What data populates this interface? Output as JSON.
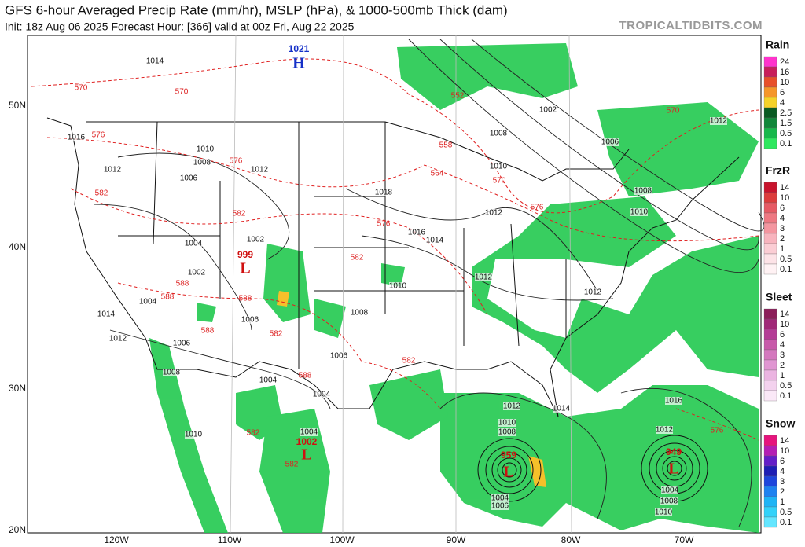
{
  "header": {
    "title": "GFS 6-hour Averaged Precip Rate (mm/hr), MSLP (hPa), & 1000-500mb Thick (dam)",
    "subtitle": "Init: 18z Aug 06 2025   Forecast Hour: [366]   valid at 00z Fri, Aug 22 2025",
    "site": "TROPICALTIDBITS.COM"
  },
  "lat_labels": [
    "50N",
    "40N",
    "30N",
    "20N"
  ],
  "lon_labels": [
    "120W",
    "110W",
    "100W",
    "90W",
    "80W",
    "70W"
  ],
  "legends": [
    {
      "title": "Rain",
      "labels": [
        24,
        16,
        10,
        6,
        4,
        2.5,
        1.5,
        0.5,
        0.1
      ],
      "colors": [
        "#ff33cc",
        "#c81e5a",
        "#e8502a",
        "#f5962a",
        "#f5d22a",
        "#0a5a23",
        "#11873a",
        "#17b84b",
        "#2ee85f"
      ]
    },
    {
      "title": "FrzR",
      "labels": [
        14,
        10,
        6,
        4,
        3,
        2,
        1,
        0.5,
        0.1
      ],
      "colors": [
        "#c8142d",
        "#dc3c3c",
        "#e65a64",
        "#ee7882",
        "#f496a0",
        "#f8b4be",
        "#fbcdd4",
        "#fde3e7",
        "#fff2f4"
      ]
    },
    {
      "title": "Sleet",
      "labels": [
        14,
        10,
        6,
        4,
        3,
        2,
        1,
        0.5,
        0.1
      ],
      "colors": [
        "#8c1e5a",
        "#a02878",
        "#b43c96",
        "#c85aaa",
        "#d478be",
        "#e096d2",
        "#ebb4e1",
        "#f3d2ee",
        "#fae8f7"
      ]
    },
    {
      "title": "Snow",
      "labels": [
        14,
        10,
        6,
        4,
        3,
        2,
        1,
        0.5,
        0.1
      ],
      "colors": [
        "#e6147d",
        "#b41eb4",
        "#641ec8",
        "#1e1eb4",
        "#1e46dc",
        "#1e82f0",
        "#1eb4f5",
        "#32d2fa",
        "#64e6ff"
      ]
    }
  ],
  "pressure_centers": [
    {
      "label": "H",
      "value": 1021
    },
    {
      "label": "L",
      "value": 999
    },
    {
      "label": "L",
      "value": 1002
    },
    {
      "label": "L",
      "value": 959
    },
    {
      "label": "L",
      "value": 949
    }
  ],
  "isobar_labels": [
    1014,
    1016,
    1012,
    1010,
    1008,
    1006,
    1012,
    1002,
    1004,
    1002,
    1004,
    1014,
    1012,
    1006,
    1008,
    1006,
    1008,
    1006,
    1004,
    1004,
    1010,
    1004,
    1018,
    1016,
    1014,
    1012,
    1012,
    1012,
    1010,
    1008,
    1010,
    1002,
    1006,
    1008,
    1010,
    1012,
    1012,
    1014,
    1010,
    1008,
    1016,
    1012,
    1004,
    1006,
    1004,
    1008,
    1010
  ],
  "thickness_labels": [
    570,
    570,
    576,
    582,
    576,
    582,
    588,
    588,
    588,
    588,
    582,
    588,
    582,
    582,
    576,
    564,
    558,
    552,
    570,
    576,
    570,
    576,
    582,
    582
  ]
}
